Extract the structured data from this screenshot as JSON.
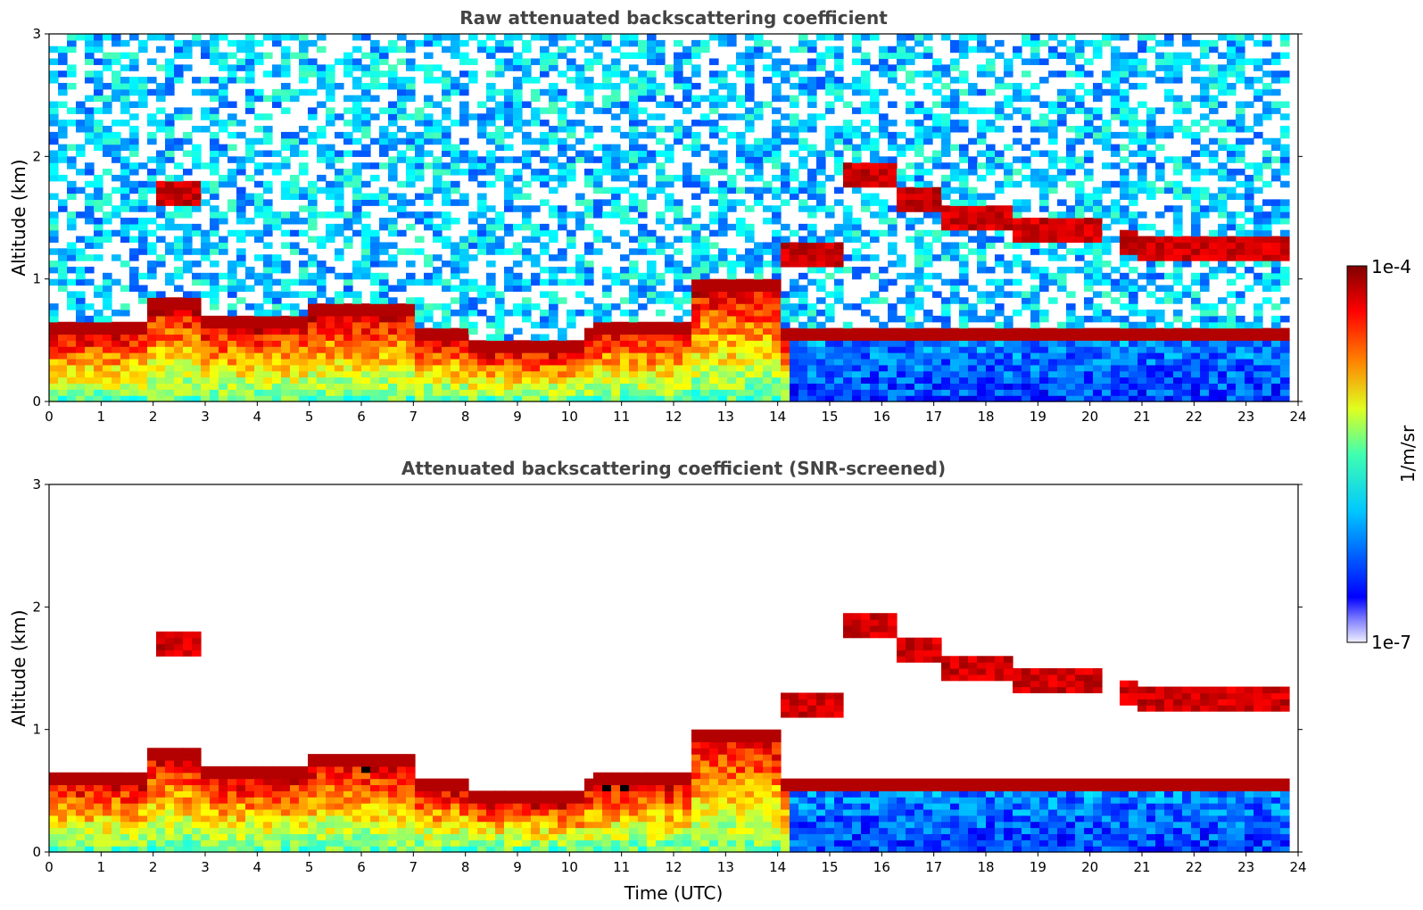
{
  "chart_data": [
    {
      "type": "heatmap",
      "title": "Raw attenuated backscattering coefficient",
      "xlabel": "",
      "ylabel": "Altitude (km)",
      "xlim": [
        0,
        24
      ],
      "ylim": [
        0,
        3
      ],
      "xticks": [
        "0",
        "1",
        "2",
        "3",
        "4",
        "5",
        "6",
        "7",
        "8",
        "9",
        "10",
        "11",
        "12",
        "13",
        "14",
        "15",
        "16",
        "17",
        "18",
        "19",
        "20",
        "21",
        "22",
        "23",
        "24"
      ],
      "yticks": [
        "0",
        "1",
        "2",
        "3"
      ],
      "screened": false,
      "layers": [
        {
          "name": "boundary layer aerosol",
          "segments": [
            [
              0,
              1.8,
              0.55
            ],
            [
              1.8,
              3,
              0.75
            ],
            [
              3,
              5,
              0.6
            ],
            [
              5,
              7,
              0.7
            ],
            [
              7,
              8,
              0.5
            ],
            [
              8,
              10.3,
              0.4
            ],
            [
              10.5,
              12.3,
              0.55
            ],
            [
              12.3,
              14,
              0.9
            ]
          ]
        },
        {
          "name": "elevated cloud",
          "segments": [
            [
              2,
              3,
              1.7
            ],
            [
              14,
              15.2,
              1.2
            ],
            [
              15.2,
              16.3,
              1.85
            ],
            [
              16.3,
              17.2,
              1.65
            ],
            [
              17.2,
              18.5,
              1.5
            ],
            [
              18.5,
              20.2,
              1.38
            ],
            [
              20.5,
              21,
              1.3
            ],
            [
              21,
              23.8,
              1.25
            ]
          ]
        }
      ]
    },
    {
      "type": "heatmap",
      "title": "Attenuated backscattering coefficient (SNR-screened)",
      "xlabel": "Time (UTC)",
      "ylabel": "Altitude (km)",
      "xlim": [
        0,
        24
      ],
      "ylim": [
        0,
        3
      ],
      "xticks": [
        "0",
        "1",
        "2",
        "3",
        "4",
        "5",
        "6",
        "7",
        "8",
        "9",
        "10",
        "11",
        "12",
        "13",
        "14",
        "15",
        "16",
        "17",
        "18",
        "19",
        "20",
        "21",
        "22",
        "23",
        "24"
      ],
      "yticks": [
        "0",
        "1",
        "2",
        "3"
      ],
      "screened": true
    }
  ],
  "colorbar": {
    "label": "1/m/sr",
    "max_label": "1e-4",
    "min_label": "1e-7",
    "scale": "log",
    "range": [
      1e-07,
      0.0001
    ],
    "colormap": "jet"
  }
}
